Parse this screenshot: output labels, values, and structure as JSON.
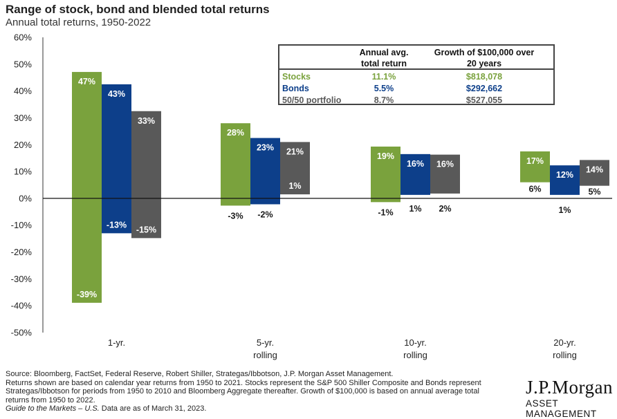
{
  "header": {
    "title": "Range of stock, bond and blended total returns",
    "subtitle": "Annual total returns, 1950-2022"
  },
  "table": {
    "col1_header_line1": "Annual avg.",
    "col1_header_line2": "total return",
    "col2_header_line1": "Growth of $100,000 over",
    "col2_header_line2": "20 years",
    "rows": [
      {
        "label": "Stocks",
        "avg": "11.1%",
        "growth": "$818,078",
        "color": "#7aa23d"
      },
      {
        "label": "Bonds",
        "avg": "5.5%",
        "growth": "$292,662",
        "color": "#0d3f8a"
      },
      {
        "label": "50/50 portfolio",
        "avg": "8.7%",
        "growth": "$527,055",
        "color": "#595959"
      }
    ]
  },
  "footer": {
    "line1": "Source: Bloomberg, FactSet, Federal Reserve, Robert Shiller, Strategas/Ibbotson, J.P. Morgan Asset Management.",
    "line2": "Returns shown are based on calendar year returns from 1950 to 2021. Stocks represent the S&P 500 Shiller Composite and Bonds represent",
    "line3": "Strategas/Ibbotson for periods from 1950 to 2010 and Bloomberg Aggregate thereafter. Growth of $100,000 is based on annual average total",
    "line4": "returns from 1950 to 2022.",
    "line5_italic": "Guide to the Markets – U.S.",
    "line5_rest": " Data are as of March 31, 2023."
  },
  "logo": {
    "main": "J.P.Morgan",
    "sub": "ASSET MANAGEMENT"
  },
  "chart_data": {
    "type": "bar",
    "subtype": "floating-range",
    "title": "Range of stock, bond and blended total returns",
    "subtitle": "Annual total returns, 1950-2022",
    "ylim": [
      -50,
      60
    ],
    "yticks": [
      -50,
      -40,
      -30,
      -20,
      -10,
      0,
      10,
      20,
      30,
      40,
      50,
      60
    ],
    "ytick_labels": [
      "-50%",
      "-40%",
      "-30%",
      "-20%",
      "-10%",
      "0%",
      "10%",
      "20%",
      "30%",
      "40%",
      "50%",
      "60%"
    ],
    "categories": [
      {
        "line1": "1-yr.",
        "line2": ""
      },
      {
        "line1": "5-yr.",
        "line2": "rolling"
      },
      {
        "line1": "10-yr.",
        "line2": "rolling"
      },
      {
        "line1": "20-yr.",
        "line2": "rolling"
      }
    ],
    "colors": {
      "stocks": "#7aa23d",
      "bonds": "#0d3f8a",
      "blend": "#595959"
    },
    "series": [
      {
        "name": "Stocks",
        "key": "stocks",
        "high": [
          47.1,
          28,
          19.3,
          17.5
        ],
        "low": [
          -38.9,
          -2.7,
          -1.4,
          6
        ],
        "high_labels": [
          "47%",
          "28%",
          "19%",
          "17%"
        ],
        "low_labels": [
          "-39%",
          "-3%",
          "-1%",
          "6%"
        ]
      },
      {
        "name": "Bonds",
        "key": "bonds",
        "high": [
          42.5,
          22.5,
          16.5,
          12.3
        ],
        "low": [
          -13,
          -2.2,
          1.3,
          1.3
        ],
        "high_labels": [
          "43%",
          "23%",
          "16%",
          "12%"
        ],
        "low_labels": [
          "-13%",
          "-2%",
          "1%",
          "1%"
        ]
      },
      {
        "name": "50/50 portfolio",
        "key": "blend",
        "high": [
          32.5,
          21,
          16.3,
          14.3
        ],
        "low": [
          -14.8,
          1.5,
          1.8,
          4.7
        ],
        "high_labels": [
          "33%",
          "21%",
          "16%",
          "14%"
        ],
        "low_labels": [
          "-15%",
          "1%",
          "2%",
          "5%"
        ]
      }
    ]
  }
}
